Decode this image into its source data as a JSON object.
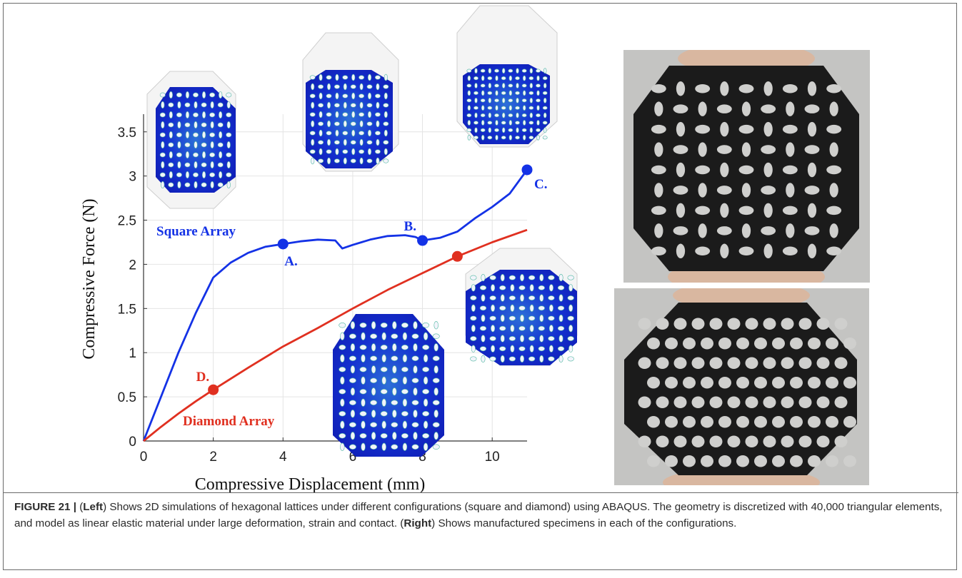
{
  "figure": {
    "label": "FIGURE 21 |",
    "caption_parts": [
      {
        "text": " (",
        "bold": false
      },
      {
        "text": "Left",
        "bold": true
      },
      {
        "text": ") Shows 2D simulations of hexagonal lattices under different configurations (square and diamond) using ABAQUS. The geometry is discretized with 40,000 triangular elements, and model as linear elastic material under large deformation, strain and contact. (",
        "bold": false
      },
      {
        "text": "Right",
        "bold": true
      },
      {
        "text": ") Shows manufactured specimens in each of the configurations.",
        "bold": false
      }
    ]
  },
  "chart_data": {
    "type": "line",
    "xlabel": "Compressive Displacement (mm)",
    "ylabel": "Compressive Force (N)",
    "xlim": [
      0,
      11
    ],
    "ylim": [
      0,
      3.7
    ],
    "xticks": [
      0,
      2,
      4,
      6,
      8,
      10
    ],
    "yticks": [
      0,
      0.5,
      1,
      1.5,
      2,
      2.5,
      3,
      3.5
    ],
    "ytick_labels": [
      "0",
      "0.5",
      "1",
      "1.5",
      "2",
      "2.5",
      "3",
      "3.5"
    ],
    "grid": true,
    "series": [
      {
        "name": "Square Array",
        "color": "#1432e6",
        "x": [
          0,
          0.5,
          1.0,
          1.5,
          2.0,
          2.5,
          3.0,
          3.5,
          4.0,
          4.5,
          5.0,
          5.5,
          5.7,
          6.0,
          6.5,
          7.0,
          7.5,
          7.8,
          8.0,
          8.5,
          9.0,
          9.5,
          10.0,
          10.5,
          11.0
        ],
        "y": [
          0,
          0.5,
          1.0,
          1.45,
          1.85,
          2.02,
          2.13,
          2.2,
          2.23,
          2.26,
          2.28,
          2.27,
          2.18,
          2.22,
          2.28,
          2.32,
          2.33,
          2.31,
          2.27,
          2.3,
          2.37,
          2.52,
          2.65,
          2.8,
          3.07
        ]
      },
      {
        "name": "Diamond Array",
        "color": "#e03020",
        "x": [
          0,
          0.5,
          1.0,
          1.5,
          2.0,
          3.0,
          4.0,
          5.0,
          6.0,
          7.0,
          8.0,
          9.0,
          10.0,
          11.0
        ],
        "y": [
          0,
          0.16,
          0.31,
          0.45,
          0.58,
          0.83,
          1.07,
          1.28,
          1.5,
          1.71,
          1.9,
          2.09,
          2.25,
          2.39
        ]
      }
    ],
    "points": [
      {
        "label": "A.",
        "x": 4.0,
        "y": 2.23,
        "color": "#1432e6"
      },
      {
        "label": "B.",
        "x": 8.0,
        "y": 2.27,
        "color": "#1432e6"
      },
      {
        "label": "C.",
        "x": 11.0,
        "y": 3.07,
        "color": "#1432e6"
      },
      {
        "label": "D.",
        "x": 2.0,
        "y": 0.58,
        "color": "#e03020"
      },
      {
        "label": "",
        "x": 9.0,
        "y": 2.09,
        "color": "#e03020"
      }
    ]
  }
}
